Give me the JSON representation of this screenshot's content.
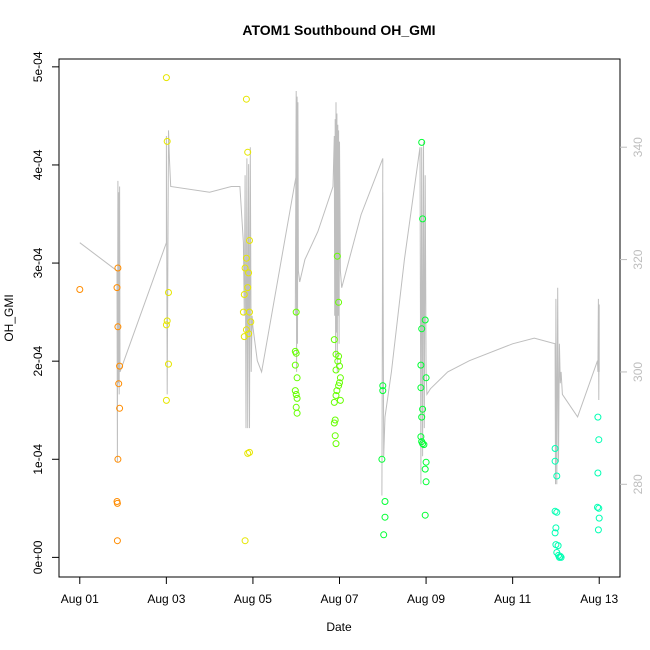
{
  "chart_data": {
    "type": "scatter",
    "title": "ATOM1 Southbound OH_GMI",
    "xlabel": "Date",
    "ylabel": "OH_GMI",
    "x_unit": "days since Aug 01",
    "xlim": [
      -0.48,
      12.48
    ],
    "ylim": [
      -2e-05,
      0.000508
    ],
    "x_ticks": [
      {
        "value": 0,
        "label": "Aug 01"
      },
      {
        "value": 2,
        "label": "Aug 03"
      },
      {
        "value": 4,
        "label": "Aug 05"
      },
      {
        "value": 6,
        "label": "Aug 07"
      },
      {
        "value": 8,
        "label": "Aug 09"
      },
      {
        "value": 10,
        "label": "Aug 11"
      },
      {
        "value": 12,
        "label": "Aug 13"
      }
    ],
    "y_ticks": [
      {
        "value": 0,
        "label": "0e+00"
      },
      {
        "value": 0.0001,
        "label": "1e-04"
      },
      {
        "value": 0.0002,
        "label": "2e-04"
      },
      {
        "value": 0.0003,
        "label": "3e-04"
      },
      {
        "value": 0.0004,
        "label": "4e-04"
      },
      {
        "value": 0.0005,
        "label": "5e-04"
      }
    ],
    "y2_axis": {
      "label": "",
      "ylim": [
        263.5,
        355.7
      ],
      "ticks": [
        {
          "value": 280,
          "label": "280"
        },
        {
          "value": 300,
          "label": "300"
        },
        {
          "value": 320,
          "label": "320"
        },
        {
          "value": 340,
          "label": "340"
        }
      ],
      "color": "#bebebe"
    },
    "series": [
      {
        "name": "OH_GMI",
        "kind": "points",
        "points": [
          {
            "x": 0.0,
            "y": 0.000273,
            "color": "#ff8c00"
          },
          {
            "x": 0.88,
            "y": 0.000295,
            "color": "#ff8c00"
          },
          {
            "x": 0.86,
            "y": 0.000275,
            "color": "#ff8c00"
          },
          {
            "x": 0.88,
            "y": 0.000235,
            "color": "#ff8c00"
          },
          {
            "x": 0.92,
            "y": 0.000195,
            "color": "#ff8c00"
          },
          {
            "x": 0.9,
            "y": 0.000177,
            "color": "#ff8c00"
          },
          {
            "x": 0.92,
            "y": 0.000152,
            "color": "#ff8c00"
          },
          {
            "x": 0.88,
            "y": 0.0001,
            "color": "#ff8c00"
          },
          {
            "x": 0.86,
            "y": 5.7e-05,
            "color": "#ff8c00"
          },
          {
            "x": 0.87,
            "y": 5.5e-05,
            "color": "#ff8c00"
          },
          {
            "x": 0.87,
            "y": 1.7e-05,
            "color": "#ff8c00"
          },
          {
            "x": 2.0,
            "y": 0.000489,
            "color": "#e6e600"
          },
          {
            "x": 2.02,
            "y": 0.000424,
            "color": "#e6e600"
          },
          {
            "x": 2.05,
            "y": 0.00027,
            "color": "#e6e600"
          },
          {
            "x": 2.02,
            "y": 0.000241,
            "color": "#e6e600"
          },
          {
            "x": 2.0,
            "y": 0.000237,
            "color": "#e6e600"
          },
          {
            "x": 2.05,
            "y": 0.000197,
            "color": "#e6e600"
          },
          {
            "x": 2.0,
            "y": 0.00016,
            "color": "#e6e600"
          },
          {
            "x": 3.85,
            "y": 0.000467,
            "color": "#e6e600"
          },
          {
            "x": 3.88,
            "y": 0.000413,
            "color": "#e6e600"
          },
          {
            "x": 3.92,
            "y": 0.000323,
            "color": "#e6e600"
          },
          {
            "x": 3.85,
            "y": 0.000305,
            "color": "#e6e600"
          },
          {
            "x": 3.82,
            "y": 0.000295,
            "color": "#e6e600"
          },
          {
            "x": 3.9,
            "y": 0.00029,
            "color": "#e6e600"
          },
          {
            "x": 3.88,
            "y": 0.000275,
            "color": "#e6e600"
          },
          {
            "x": 3.8,
            "y": 0.000268,
            "color": "#e6e600"
          },
          {
            "x": 3.92,
            "y": 0.00025,
            "color": "#e6e600"
          },
          {
            "x": 3.78,
            "y": 0.00025,
            "color": "#e6e600"
          },
          {
            "x": 3.95,
            "y": 0.00024,
            "color": "#e6e600"
          },
          {
            "x": 3.85,
            "y": 0.000232,
            "color": "#e6e600"
          },
          {
            "x": 3.9,
            "y": 0.000228,
            "color": "#e6e600"
          },
          {
            "x": 3.8,
            "y": 0.000225,
            "color": "#e6e600"
          },
          {
            "x": 3.88,
            "y": 0.000106,
            "color": "#e6e600"
          },
          {
            "x": 3.92,
            "y": 0.000107,
            "color": "#e6e600"
          },
          {
            "x": 3.82,
            "y": 1.7e-05,
            "color": "#e6e600"
          },
          {
            "x": 5.0,
            "y": 0.00025,
            "color": "#66ff00"
          },
          {
            "x": 4.98,
            "y": 0.00021,
            "color": "#66ff00"
          },
          {
            "x": 5.0,
            "y": 0.000208,
            "color": "#66ff00"
          },
          {
            "x": 4.98,
            "y": 0.000196,
            "color": "#66ff00"
          },
          {
            "x": 5.02,
            "y": 0.000183,
            "color": "#66ff00"
          },
          {
            "x": 4.98,
            "y": 0.00017,
            "color": "#66ff00"
          },
          {
            "x": 5.0,
            "y": 0.000166,
            "color": "#66ff00"
          },
          {
            "x": 5.02,
            "y": 0.000162,
            "color": "#66ff00"
          },
          {
            "x": 5.0,
            "y": 0.000153,
            "color": "#66ff00"
          },
          {
            "x": 5.02,
            "y": 0.000147,
            "color": "#66ff00"
          },
          {
            "x": 5.95,
            "y": 0.000307,
            "color": "#66ff00"
          },
          {
            "x": 5.98,
            "y": 0.00026,
            "color": "#66ff00"
          },
          {
            "x": 5.88,
            "y": 0.000222,
            "color": "#66ff00"
          },
          {
            "x": 5.92,
            "y": 0.000207,
            "color": "#66ff00"
          },
          {
            "x": 5.98,
            "y": 0.000205,
            "color": "#66ff00"
          },
          {
            "x": 5.96,
            "y": 0.0002,
            "color": "#66ff00"
          },
          {
            "x": 6.0,
            "y": 0.000195,
            "color": "#66ff00"
          },
          {
            "x": 5.92,
            "y": 0.000191,
            "color": "#66ff00"
          },
          {
            "x": 6.02,
            "y": 0.000183,
            "color": "#66ff00"
          },
          {
            "x": 6.0,
            "y": 0.000178,
            "color": "#66ff00"
          },
          {
            "x": 5.98,
            "y": 0.000175,
            "color": "#66ff00"
          },
          {
            "x": 5.94,
            "y": 0.00017,
            "color": "#66ff00"
          },
          {
            "x": 5.92,
            "y": 0.000165,
            "color": "#66ff00"
          },
          {
            "x": 5.88,
            "y": 0.000158,
            "color": "#66ff00"
          },
          {
            "x": 6.02,
            "y": 0.00016,
            "color": "#66ff00"
          },
          {
            "x": 5.9,
            "y": 0.00014,
            "color": "#66ff00"
          },
          {
            "x": 5.88,
            "y": 0.000137,
            "color": "#66ff00"
          },
          {
            "x": 5.9,
            "y": 0.000124,
            "color": "#66ff00"
          },
          {
            "x": 5.92,
            "y": 0.000116,
            "color": "#66ff00"
          },
          {
            "x": 7.0,
            "y": 0.000175,
            "color": "#00ff33"
          },
          {
            "x": 7.0,
            "y": 0.00017,
            "color": "#00ff33"
          },
          {
            "x": 6.98,
            "y": 0.0001,
            "color": "#00ff33"
          },
          {
            "x": 7.05,
            "y": 5.7e-05,
            "color": "#00ff33"
          },
          {
            "x": 7.05,
            "y": 4.1e-05,
            "color": "#00ff33"
          },
          {
            "x": 7.02,
            "y": 2.3e-05,
            "color": "#00ff33"
          },
          {
            "x": 7.9,
            "y": 0.000423,
            "color": "#00ff33"
          },
          {
            "x": 7.92,
            "y": 0.000345,
            "color": "#00ff33"
          },
          {
            "x": 7.98,
            "y": 0.000242,
            "color": "#00ff33"
          },
          {
            "x": 7.9,
            "y": 0.000233,
            "color": "#00ff33"
          },
          {
            "x": 7.88,
            "y": 0.000196,
            "color": "#00ff33"
          },
          {
            "x": 8.0,
            "y": 0.000183,
            "color": "#00ff33"
          },
          {
            "x": 7.88,
            "y": 0.000173,
            "color": "#00ff33"
          },
          {
            "x": 7.92,
            "y": 0.000151,
            "color": "#00ff33"
          },
          {
            "x": 7.9,
            "y": 0.000143,
            "color": "#00ff33"
          },
          {
            "x": 7.88,
            "y": 0.000123,
            "color": "#00ff33"
          },
          {
            "x": 7.9,
            "y": 0.000118,
            "color": "#00ff33"
          },
          {
            "x": 7.92,
            "y": 0.000116,
            "color": "#00ff33"
          },
          {
            "x": 7.95,
            "y": 0.000115,
            "color": "#00ff33"
          },
          {
            "x": 8.0,
            "y": 9.7e-05,
            "color": "#00ff33"
          },
          {
            "x": 7.98,
            "y": 9e-05,
            "color": "#00ff33"
          },
          {
            "x": 8.0,
            "y": 7.7e-05,
            "color": "#00ff33"
          },
          {
            "x": 7.98,
            "y": 4.3e-05,
            "color": "#00ff33"
          },
          {
            "x": 10.98,
            "y": 0.000111,
            "color": "#00ffb3"
          },
          {
            "x": 10.98,
            "y": 9.8e-05,
            "color": "#00ffb3"
          },
          {
            "x": 11.02,
            "y": 8.3e-05,
            "color": "#00ffb3"
          },
          {
            "x": 10.98,
            "y": 4.7e-05,
            "color": "#00ffb3"
          },
          {
            "x": 11.02,
            "y": 4.6e-05,
            "color": "#00ffb3"
          },
          {
            "x": 11.0,
            "y": 3e-05,
            "color": "#00ffb3"
          },
          {
            "x": 10.98,
            "y": 2.5e-05,
            "color": "#00ffb3"
          },
          {
            "x": 11.0,
            "y": 1.3e-05,
            "color": "#00ffb3"
          },
          {
            "x": 11.05,
            "y": 1.2e-05,
            "color": "#00ffb3"
          },
          {
            "x": 11.02,
            "y": 5e-06,
            "color": "#00ffb3"
          },
          {
            "x": 11.06,
            "y": 2e-06,
            "color": "#00ffb3"
          },
          {
            "x": 11.1,
            "y": 1e-06,
            "color": "#00ffb3"
          },
          {
            "x": 11.08,
            "y": 0.0,
            "color": "#00ffb3"
          },
          {
            "x": 11.12,
            "y": 0.0,
            "color": "#00ffb3"
          },
          {
            "x": 11.97,
            "y": 0.000143,
            "color": "#00ffb3"
          },
          {
            "x": 11.99,
            "y": 0.00012,
            "color": "#00ffb3"
          },
          {
            "x": 11.97,
            "y": 8.6e-05,
            "color": "#00ffb3"
          },
          {
            "x": 11.96,
            "y": 5.1e-05,
            "color": "#00ffb3"
          },
          {
            "x": 11.99,
            "y": 5e-05,
            "color": "#00ffb3"
          },
          {
            "x": 12.0,
            "y": 4e-05,
            "color": "#00ffb3"
          },
          {
            "x": 11.98,
            "y": 2.8e-05,
            "color": "#00ffb3"
          }
        ]
      },
      {
        "name": "secondary-axis-trace",
        "kind": "line",
        "axis": "y2",
        "color": "#bebebe",
        "points": [
          [
            0.0,
            323
          ],
          [
            0.86,
            318
          ],
          [
            0.87,
            284
          ],
          [
            0.88,
            334
          ],
          [
            0.89,
            298
          ],
          [
            0.9,
            332
          ],
          [
            0.91,
            296
          ],
          [
            0.92,
            333
          ],
          [
            0.93,
            300
          ],
          [
            2.0,
            323
          ],
          [
            2.0,
            342
          ],
          [
            2.02,
            296
          ],
          [
            2.05,
            343
          ],
          [
            2.07,
            338
          ],
          [
            2.1,
            333
          ],
          [
            3.0,
            332
          ],
          [
            3.5,
            333
          ],
          [
            3.7,
            333
          ],
          [
            3.78,
            323
          ],
          [
            3.8,
            310
          ],
          [
            3.82,
            335
          ],
          [
            3.84,
            290
          ],
          [
            3.86,
            338
          ],
          [
            3.88,
            290
          ],
          [
            3.9,
            337
          ],
          [
            3.92,
            290
          ],
          [
            3.94,
            340
          ],
          [
            3.96,
            300
          ],
          [
            3.98,
            310
          ],
          [
            4.0,
            308
          ],
          [
            4.05,
            305
          ],
          [
            4.1,
            302
          ],
          [
            4.2,
            300
          ],
          [
            5.0,
            335
          ],
          [
            4.98,
            310
          ],
          [
            5.0,
            350
          ],
          [
            5.01,
            300
          ],
          [
            5.02,
            349
          ],
          [
            5.03,
            305
          ],
          [
            5.04,
            348
          ],
          [
            5.05,
            318
          ],
          [
            5.08,
            316
          ],
          [
            5.2,
            320
          ],
          [
            5.5,
            325
          ],
          [
            5.85,
            333
          ],
          [
            5.88,
            342
          ],
          [
            5.89,
            310
          ],
          [
            5.9,
            345
          ],
          [
            5.91,
            303
          ],
          [
            5.92,
            348
          ],
          [
            5.93,
            307
          ],
          [
            5.94,
            346
          ],
          [
            5.95,
            300
          ],
          [
            5.96,
            344
          ],
          [
            5.97,
            310
          ],
          [
            5.98,
            343
          ],
          [
            5.99,
            305
          ],
          [
            6.0,
            341
          ],
          [
            6.02,
            318
          ],
          [
            6.05,
            315
          ],
          [
            6.5,
            328
          ],
          [
            7.0,
            338
          ],
          [
            6.98,
            278
          ],
          [
            7.0,
            332
          ],
          [
            7.02,
            285
          ],
          [
            7.05,
            292
          ],
          [
            7.2,
            300
          ],
          [
            7.5,
            320
          ],
          [
            7.86,
            340
          ],
          [
            7.88,
            280
          ],
          [
            7.9,
            340
          ],
          [
            7.92,
            285
          ],
          [
            7.94,
            341
          ],
          [
            7.96,
            290
          ],
          [
            7.98,
            335
          ],
          [
            8.0,
            300
          ],
          [
            8.02,
            296
          ],
          [
            8.1,
            297
          ],
          [
            8.5,
            300
          ],
          [
            9.0,
            302
          ],
          [
            10.0,
            305
          ],
          [
            10.5,
            306
          ],
          [
            10.98,
            305
          ],
          [
            10.99,
            280
          ],
          [
            11.0,
            313
          ],
          [
            11.02,
            280
          ],
          [
            11.04,
            315
          ],
          [
            11.06,
            284
          ],
          [
            11.08,
            305
          ],
          [
            11.1,
            298
          ],
          [
            11.12,
            300
          ],
          [
            11.15,
            296
          ],
          [
            11.5,
            292
          ],
          [
            11.96,
            302
          ],
          [
            11.97,
            300
          ],
          [
            11.98,
            313
          ],
          [
            11.99,
            295
          ],
          [
            12.0,
            312
          ],
          [
            12.0,
            300
          ]
        ]
      }
    ],
    "grid": false,
    "legend": "none"
  }
}
